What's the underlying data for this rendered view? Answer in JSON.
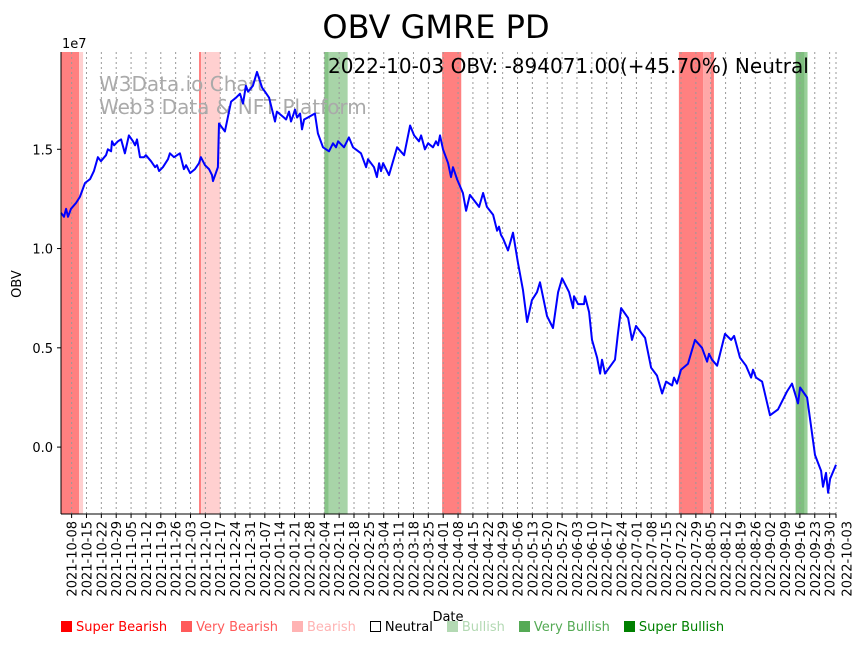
{
  "chart_data": {
    "type": "line",
    "title": "OBV GMRE PD",
    "annotation": "2022-10-03 OBV: -894071.00(+45.70%) Neutral",
    "watermark": [
      "W3Data.io Chart",
      "Web3 Data & NFT Platform"
    ],
    "xlabel": "Date",
    "ylabel": "OBV",
    "y_multiplier_label": "1e7",
    "x_start": "2021-10-03",
    "x_unit": "days since x_start",
    "xlim_days": [
      0,
      365
    ],
    "ylim": [
      -0.337,
      1.99
    ],
    "yticks": [
      {
        "value": 0.0,
        "label": "0.0"
      },
      {
        "value": 0.5,
        "label": "0.5"
      },
      {
        "value": 1.0,
        "label": "1.0"
      },
      {
        "value": 1.5,
        "label": "1.5"
      }
    ],
    "xticks": [
      "2021-10-08",
      "2021-10-15",
      "2021-10-22",
      "2021-10-29",
      "2021-11-05",
      "2021-11-12",
      "2021-11-19",
      "2021-11-26",
      "2021-12-03",
      "2021-12-10",
      "2021-12-17",
      "2021-12-24",
      "2021-12-31",
      "2022-01-07",
      "2022-01-14",
      "2022-01-21",
      "2022-01-28",
      "2022-02-04",
      "2022-02-11",
      "2022-02-18",
      "2022-02-25",
      "2022-03-04",
      "2022-03-11",
      "2022-03-18",
      "2022-03-25",
      "2022-04-01",
      "2022-04-08",
      "2022-04-15",
      "2022-04-22",
      "2022-04-29",
      "2022-05-06",
      "2022-05-13",
      "2022-05-20",
      "2022-05-27",
      "2022-06-03",
      "2022-06-10",
      "2022-06-17",
      "2022-06-24",
      "2022-07-01",
      "2022-07-08",
      "2022-07-15",
      "2022-07-22",
      "2022-07-29",
      "2022-08-05",
      "2022-08-12",
      "2022-08-19",
      "2022-08-26",
      "2022-09-02",
      "2022-09-09",
      "2022-09-16",
      "2022-09-23",
      "2022-09-30",
      "2022-10-03"
    ],
    "series": [
      {
        "name": "OBV",
        "color": "#0000ff",
        "points": [
          [
            0,
            1.18
          ],
          [
            1.4,
            1.16
          ],
          [
            2.4,
            1.2
          ],
          [
            3.3,
            1.16
          ],
          [
            4.7,
            1.2
          ],
          [
            7.1,
            1.23
          ],
          [
            8.9,
            1.26
          ],
          [
            11.3,
            1.33
          ],
          [
            13.7,
            1.35
          ],
          [
            15.5,
            1.39
          ],
          [
            17.4,
            1.46
          ],
          [
            18.8,
            1.44
          ],
          [
            21.2,
            1.47
          ],
          [
            22.1,
            1.5
          ],
          [
            23.6,
            1.49
          ],
          [
            24,
            1.54
          ],
          [
            25,
            1.52
          ],
          [
            26.8,
            1.54
          ],
          [
            28.3,
            1.55
          ],
          [
            30.1,
            1.48
          ],
          [
            32,
            1.57
          ],
          [
            33.9,
            1.54
          ],
          [
            34.9,
            1.52
          ],
          [
            35.8,
            1.55
          ],
          [
            37.2,
            1.46
          ],
          [
            39.1,
            1.46
          ],
          [
            40,
            1.47
          ],
          [
            42.4,
            1.44
          ],
          [
            44.3,
            1.41
          ],
          [
            45.2,
            1.42
          ],
          [
            46.2,
            1.39
          ],
          [
            48,
            1.41
          ],
          [
            50.4,
            1.45
          ],
          [
            51.3,
            1.48
          ],
          [
            53.2,
            1.46
          ],
          [
            56,
            1.48
          ],
          [
            57.9,
            1.4
          ],
          [
            58.9,
            1.42
          ],
          [
            60.8,
            1.38
          ],
          [
            63.1,
            1.4
          ],
          [
            65,
            1.43
          ],
          [
            65.9,
            1.46
          ],
          [
            67.8,
            1.42
          ],
          [
            69.7,
            1.4
          ],
          [
            71.1,
            1.37
          ],
          [
            71.6,
            1.34
          ],
          [
            73.9,
            1.41
          ],
          [
            74.4,
            1.63
          ],
          [
            77.2,
            1.59
          ],
          [
            80.1,
            1.74
          ],
          [
            82.4,
            1.76
          ],
          [
            84.3,
            1.78
          ],
          [
            85.7,
            1.73
          ],
          [
            87.1,
            1.82
          ],
          [
            88.1,
            1.79
          ],
          [
            90.4,
            1.82
          ],
          [
            92.3,
            1.89
          ],
          [
            94.7,
            1.81
          ],
          [
            96.1,
            1.79
          ],
          [
            98,
            1.76
          ],
          [
            100.8,
            1.64
          ],
          [
            101.7,
            1.69
          ],
          [
            105,
            1.66
          ],
          [
            106,
            1.65
          ],
          [
            107.4,
            1.69
          ],
          [
            108.3,
            1.64
          ],
          [
            109.3,
            1.67
          ],
          [
            110.2,
            1.7
          ],
          [
            111.2,
            1.66
          ],
          [
            112.6,
            1.68
          ],
          [
            113.5,
            1.6
          ],
          [
            114.5,
            1.65
          ],
          [
            116.3,
            1.66
          ],
          [
            119.6,
            1.68
          ],
          [
            121,
            1.58
          ],
          [
            123.4,
            1.51
          ],
          [
            126.2,
            1.49
          ],
          [
            128.1,
            1.53
          ],
          [
            129.5,
            1.51
          ],
          [
            130.5,
            1.54
          ],
          [
            133.3,
            1.51
          ],
          [
            135.6,
            1.56
          ],
          [
            137.5,
            1.51
          ],
          [
            141.3,
            1.48
          ],
          [
            143.7,
            1.41
          ],
          [
            144.6,
            1.45
          ],
          [
            147.4,
            1.41
          ],
          [
            148.8,
            1.36
          ],
          [
            149.8,
            1.43
          ],
          [
            150.7,
            1.39
          ],
          [
            151.7,
            1.43
          ],
          [
            154.5,
            1.37
          ],
          [
            158.3,
            1.51
          ],
          [
            161.6,
            1.47
          ],
          [
            164.4,
            1.62
          ],
          [
            166.3,
            1.57
          ],
          [
            168.6,
            1.54
          ],
          [
            169.6,
            1.57
          ],
          [
            171.4,
            1.5
          ],
          [
            172.9,
            1.53
          ],
          [
            175.2,
            1.51
          ],
          [
            176.6,
            1.54
          ],
          [
            177.6,
            1.52
          ],
          [
            178.5,
            1.57
          ],
          [
            179.9,
            1.5
          ],
          [
            182.3,
            1.43
          ],
          [
            183.7,
            1.36
          ],
          [
            184.6,
            1.41
          ],
          [
            186.5,
            1.35
          ],
          [
            189.3,
            1.28
          ],
          [
            190.8,
            1.19
          ],
          [
            192.6,
            1.27
          ],
          [
            196.9,
            1.21
          ],
          [
            198.8,
            1.28
          ],
          [
            200.6,
            1.21
          ],
          [
            203.5,
            1.17
          ],
          [
            205.4,
            1.09
          ],
          [
            206.3,
            1.11
          ],
          [
            207.2,
            1.07
          ],
          [
            208.2,
            1.05
          ],
          [
            210.5,
            0.99
          ],
          [
            212.9,
            1.08
          ],
          [
            215.2,
            0.93
          ],
          [
            217.6,
            0.79
          ],
          [
            219.5,
            0.63
          ],
          [
            221.8,
            0.74
          ],
          [
            224.2,
            0.78
          ],
          [
            225.6,
            0.83
          ],
          [
            228.9,
            0.66
          ],
          [
            231.7,
            0.6
          ],
          [
            234.1,
            0.78
          ],
          [
            236,
            0.85
          ],
          [
            239.3,
            0.78
          ],
          [
            241.2,
            0.7
          ],
          [
            241.6,
            0.76
          ],
          [
            243.5,
            0.72
          ],
          [
            246.3,
            0.72
          ],
          [
            246.8,
            0.76
          ],
          [
            248.7,
            0.68
          ],
          [
            250.1,
            0.54
          ],
          [
            252.5,
            0.45
          ],
          [
            253.9,
            0.37
          ],
          [
            254.8,
            0.44
          ],
          [
            256.2,
            0.37
          ],
          [
            260.9,
            0.44
          ],
          [
            262.3,
            0.57
          ],
          [
            263.8,
            0.7
          ],
          [
            267.1,
            0.65
          ],
          [
            268.9,
            0.54
          ],
          [
            270.8,
            0.61
          ],
          [
            275.1,
            0.55
          ],
          [
            277.9,
            0.4
          ],
          [
            280.7,
            0.36
          ],
          [
            283.1,
            0.27
          ],
          [
            285,
            0.33
          ],
          [
            287.8,
            0.31
          ],
          [
            288.7,
            0.35
          ],
          [
            290.1,
            0.32
          ],
          [
            292,
            0.39
          ],
          [
            295.3,
            0.42
          ],
          [
            298.6,
            0.54
          ],
          [
            301.9,
            0.5
          ],
          [
            304.3,
            0.43
          ],
          [
            305.2,
            0.47
          ],
          [
            306.6,
            0.44
          ],
          [
            309,
            0.41
          ],
          [
            312.7,
            0.57
          ],
          [
            315.6,
            0.54
          ],
          [
            317,
            0.56
          ],
          [
            319.8,
            0.45
          ],
          [
            322.6,
            0.41
          ],
          [
            325,
            0.35
          ],
          [
            325.9,
            0.39
          ],
          [
            327.3,
            0.35
          ],
          [
            330.2,
            0.33
          ],
          [
            333.9,
            0.16
          ],
          [
            337.7,
            0.19
          ],
          [
            341.9,
            0.28
          ],
          [
            344.3,
            0.32
          ],
          [
            347.1,
            0.22
          ],
          [
            348.1,
            0.3
          ],
          [
            351.4,
            0.25
          ],
          [
            355.1,
            -0.04
          ],
          [
            358,
            -0.12
          ],
          [
            358.9,
            -0.2
          ],
          [
            360.3,
            -0.13
          ],
          [
            361.3,
            -0.23
          ],
          [
            362.2,
            -0.16
          ],
          [
            365,
            -0.089
          ]
        ]
      }
    ],
    "regions": [
      {
        "from": 0,
        "to": 8.5,
        "color": "#ff8080"
      },
      {
        "from": 8.5,
        "to": 10.4,
        "color": "#ffd0d0"
      },
      {
        "from": 65,
        "to": 66,
        "color": "#ff8080"
      },
      {
        "from": 66,
        "to": 75,
        "color": "#ffd0d0"
      },
      {
        "from": 124,
        "to": 126,
        "color": "#88c488"
      },
      {
        "from": 126,
        "to": 135,
        "color": "#a8d4a8"
      },
      {
        "from": 179.5,
        "to": 188.5,
        "color": "#ff8080"
      },
      {
        "from": 291,
        "to": 302.5,
        "color": "#ff8080"
      },
      {
        "from": 302.5,
        "to": 306,
        "color": "#ffa8a8"
      },
      {
        "from": 306,
        "to": 307.5,
        "color": "#ff8080"
      },
      {
        "from": 346,
        "to": 350.3,
        "color": "#7fbf7f"
      },
      {
        "from": 350.3,
        "to": 351.6,
        "color": "#99d099"
      }
    ],
    "legend": {
      "placement": "bottom",
      "items": [
        {
          "label": "Super Bearish",
          "color": "#ff0000"
        },
        {
          "label": "Very Bearish",
          "color": "#ff5a5a"
        },
        {
          "label": "Bearish",
          "color": "#ffb3b3"
        },
        {
          "label": "Neutral",
          "color": "#ffffff"
        },
        {
          "label": "Bullish",
          "color": "#b3d9b3"
        },
        {
          "label": "Very Bullish",
          "color": "#55aa55"
        },
        {
          "label": "Super Bullish",
          "color": "#008000"
        }
      ]
    },
    "grid": "vertical dotted at x ticks"
  }
}
